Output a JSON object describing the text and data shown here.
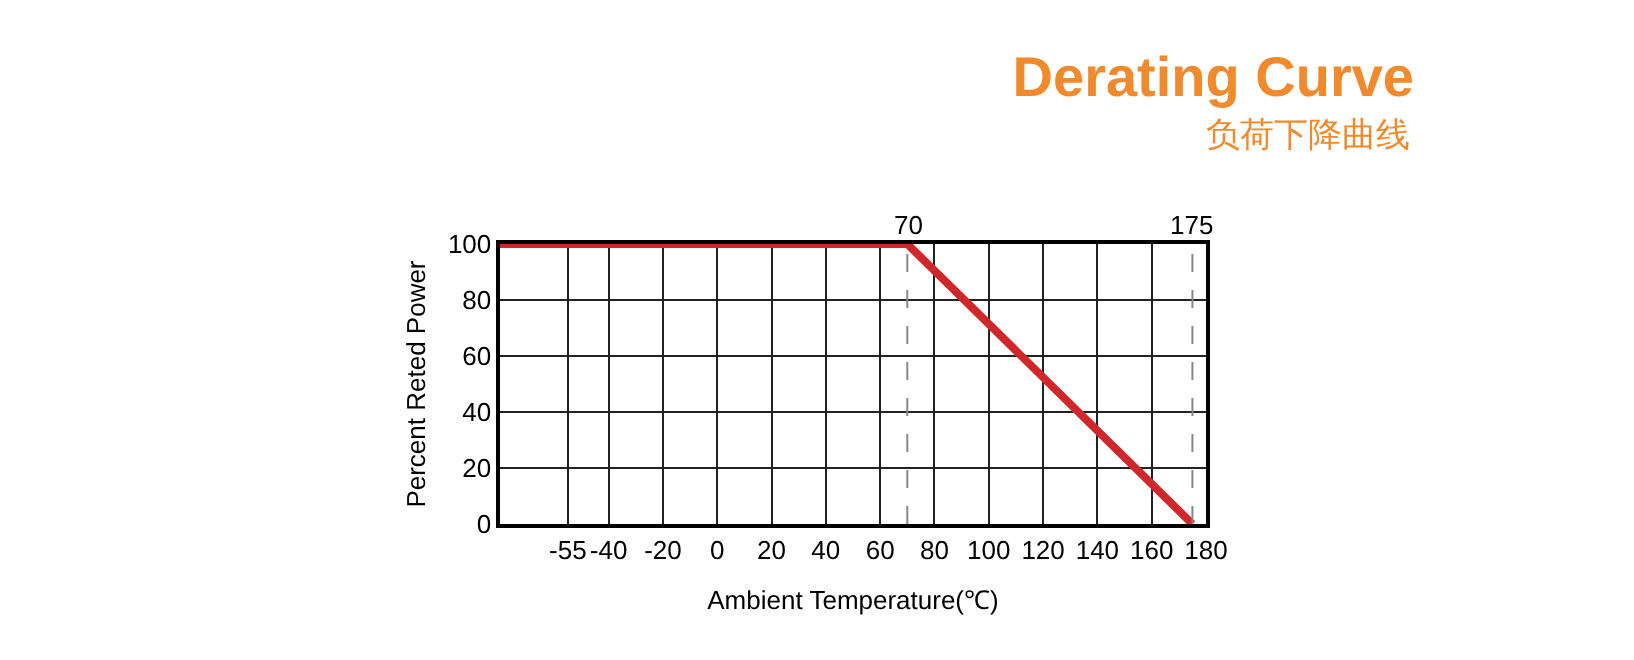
{
  "chart_data": {
    "type": "line",
    "title": "Derating Curve",
    "subtitle": "负荷下降曲线",
    "xlabel": "Ambient Temperature(℃)",
    "ylabel": "Percent Reted Power",
    "x": [
      -80,
      70,
      175
    ],
    "series": [
      {
        "color": "#d0282a",
        "values": [
          100,
          100,
          0
        ]
      }
    ],
    "xlim": [
      -80,
      180
    ],
    "xticks": [
      -55,
      -40,
      -20,
      0,
      20,
      40,
      60,
      80,
      100,
      120,
      140,
      160,
      180
    ],
    "ylim": [
      0,
      100
    ],
    "yticks": [
      0,
      20,
      40,
      60,
      80,
      100
    ],
    "ref_lines": [
      {
        "axis": "x",
        "value": 70,
        "label": "70",
        "line_style": "dashed",
        "color": "#888888"
      },
      {
        "axis": "x",
        "value": 175,
        "label": "175",
        "line_style": "dashed",
        "color": "#888888"
      }
    ],
    "grid": true,
    "marker": "none",
    "line_style": "solid"
  }
}
